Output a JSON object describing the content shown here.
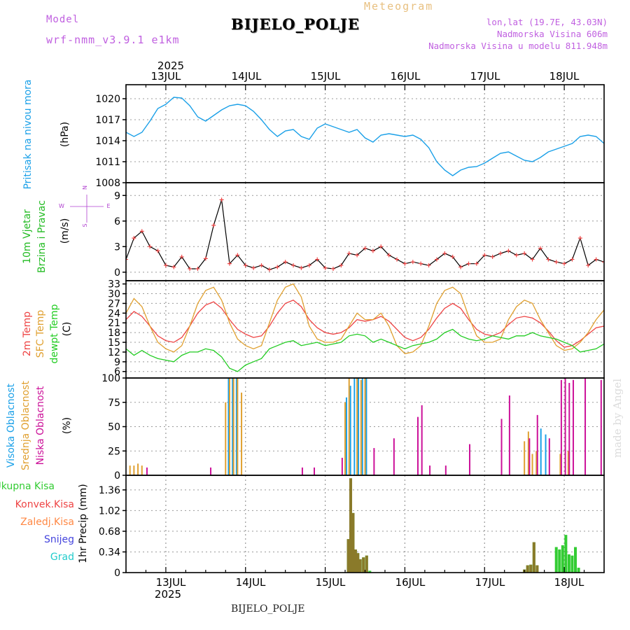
{
  "header": {
    "model_label": "Model",
    "model_name": "wrf-nmm_v3.9.1 e1km",
    "chart_kind": "Meteogram",
    "station": "BIJELO_POLJE",
    "lonlat": "lon,lat (19.7E, 43.03N)",
    "altitude": "Nadmorska Visina 606m",
    "model_altitude": "Nadmorska Visina u modelu 811.948m",
    "credit": "made by Angel",
    "bottom_station": "BIJELO_POLJE"
  },
  "colors": {
    "pressure": "#1aa0e8",
    "wind_label": "#22bb22",
    "temp2m": "#ee4444",
    "sfc_temp": "#e0a030",
    "dewpt": "#22cc22",
    "cloud_high": "#1aa0e8",
    "cloud_mid": "#e0a030",
    "cloud_low": "#cc1199",
    "precip_total": "#33cc33",
    "precip_conv": "#ee4444",
    "precip_frz": "#ff8844",
    "snow": "#4444dd",
    "hail": "#22cccc"
  },
  "time_axis": {
    "year": "2025",
    "days": [
      "13JUL",
      "14JUL",
      "15JUL",
      "16JUL",
      "17JUL",
      "18JUL"
    ]
  },
  "chart_data": [
    {
      "type": "line",
      "panel": "pressure",
      "ylabel_1": "Pritisak na nivou mora",
      "ylabel_2": "(hPa)",
      "ylim": [
        1008,
        1022
      ],
      "yticks": [
        1008,
        1011,
        1014,
        1017,
        1020
      ],
      "x_days": [
        12.5,
        18.5
      ],
      "series": [
        {
          "x": [
            12.5,
            12.6,
            12.7,
            12.8,
            12.9,
            13.0,
            13.1,
            13.2,
            13.3,
            13.4,
            13.5,
            13.6,
            13.7,
            13.8,
            13.9,
            14.0,
            14.1,
            14.2,
            14.3,
            14.4,
            14.5,
            14.6,
            14.7,
            14.8,
            14.9,
            15.0,
            15.1,
            15.2,
            15.3,
            15.4,
            15.5,
            15.6,
            15.7,
            15.8,
            15.9,
            16.0,
            16.1,
            16.2,
            16.3,
            16.4,
            16.5,
            16.6,
            16.7,
            16.8,
            16.9,
            17.0,
            17.1,
            17.2,
            17.3,
            17.4,
            17.5,
            17.6,
            17.7,
            17.8,
            17.9,
            18.0,
            18.1,
            18.2,
            18.3,
            18.4,
            18.5
          ],
          "y": [
            1015.2,
            1014.6,
            1015.2,
            1016.8,
            1018.6,
            1019.2,
            1020.2,
            1020.1,
            1019.0,
            1017.4,
            1016.8,
            1017.6,
            1018.4,
            1019.0,
            1019.2,
            1019.0,
            1018.2,
            1017.0,
            1015.6,
            1014.6,
            1015.4,
            1015.6,
            1014.6,
            1014.2,
            1015.8,
            1016.4,
            1016.0,
            1015.6,
            1015.2,
            1015.6,
            1014.4,
            1013.8,
            1014.8,
            1015.0,
            1014.8,
            1014.6,
            1014.8,
            1014.2,
            1013.0,
            1011.0,
            1009.8,
            1009.0,
            1009.8,
            1010.2,
            1010.3,
            1010.8,
            1011.5,
            1012.2,
            1012.4,
            1011.8,
            1011.2,
            1011.0,
            1011.6,
            1012.4,
            1012.8,
            1013.2,
            1013.6,
            1014.6,
            1014.8,
            1014.6,
            1013.6
          ]
        }
      ]
    },
    {
      "type": "line",
      "panel": "wind",
      "ylabel_1": "10m Vjetar",
      "ylabel_2": "Brzina i Pravac",
      "ylabel_3": "(m/s)",
      "compass": [
        "N",
        "W",
        "E",
        "S"
      ],
      "ylim": [
        -1,
        10.5
      ],
      "yticks": [
        0,
        3,
        6,
        9
      ],
      "series": [
        {
          "x": [
            12.5,
            12.6,
            12.7,
            12.8,
            12.9,
            13.0,
            13.1,
            13.2,
            13.3,
            13.4,
            13.5,
            13.6,
            13.7,
            13.8,
            13.9,
            14.0,
            14.1,
            14.2,
            14.3,
            14.4,
            14.5,
            14.6,
            14.7,
            14.8,
            14.9,
            15.0,
            15.1,
            15.2,
            15.3,
            15.4,
            15.5,
            15.6,
            15.7,
            15.8,
            15.9,
            16.0,
            16.1,
            16.2,
            16.3,
            16.4,
            16.5,
            16.6,
            16.7,
            16.8,
            16.9,
            17.0,
            17.1,
            17.2,
            17.3,
            17.4,
            17.5,
            17.6,
            17.7,
            17.8,
            17.9,
            18.0,
            18.1,
            18.2,
            18.3,
            18.4,
            18.5
          ],
          "y": [
            1.5,
            4.0,
            4.8,
            3.0,
            2.5,
            0.8,
            0.6,
            1.8,
            0.4,
            0.4,
            1.6,
            5.5,
            8.5,
            1.0,
            2.0,
            0.8,
            0.5,
            0.8,
            0.3,
            0.6,
            1.2,
            0.8,
            0.5,
            0.8,
            1.5,
            0.5,
            0.4,
            0.8,
            2.2,
            2.0,
            2.8,
            2.5,
            3.0,
            2.0,
            1.5,
            1.0,
            1.2,
            1.0,
            0.8,
            1.5,
            2.2,
            1.8,
            0.6,
            1.0,
            1.0,
            2.0,
            1.8,
            2.2,
            2.5,
            2.0,
            2.2,
            1.5,
            2.8,
            1.5,
            1.2,
            1.0,
            1.5,
            4.0,
            0.8,
            1.5,
            1.2
          ]
        }
      ]
    },
    {
      "type": "line",
      "panel": "temperature",
      "ylabel_1": "2m Temp",
      "ylabel_2": "SFC Temp",
      "ylabel_3": "dewpt Temp",
      "ylabel_4": "(C)",
      "ylim": [
        4,
        34
      ],
      "yticks": [
        6,
        9,
        12,
        15,
        18,
        21,
        24,
        27,
        30,
        33
      ],
      "series": [
        {
          "name": "2m Temp",
          "x": [
            12.5,
            12.6,
            12.7,
            12.8,
            12.9,
            13.0,
            13.1,
            13.2,
            13.3,
            13.4,
            13.5,
            13.6,
            13.7,
            13.8,
            13.9,
            14.0,
            14.1,
            14.2,
            14.3,
            14.4,
            14.5,
            14.6,
            14.7,
            14.8,
            14.9,
            15.0,
            15.1,
            15.2,
            15.3,
            15.4,
            15.5,
            15.6,
            15.7,
            15.8,
            15.9,
            16.0,
            16.1,
            16.2,
            16.3,
            16.4,
            16.5,
            16.6,
            16.7,
            16.8,
            16.9,
            17.0,
            17.1,
            17.2,
            17.3,
            17.4,
            17.5,
            17.6,
            17.7,
            17.8,
            17.9,
            18.0,
            18.1,
            18.2,
            18.3,
            18.4,
            18.5
          ],
          "y": [
            22,
            24.5,
            23,
            20,
            17,
            15.5,
            15,
            16.5,
            20,
            24,
            26.5,
            27.5,
            25.5,
            22,
            19,
            17.5,
            16.5,
            17,
            20,
            24,
            27,
            28,
            26,
            22,
            19.5,
            18,
            17.5,
            18,
            19.5,
            22,
            21.5,
            22,
            23,
            21.5,
            19,
            16.5,
            15.5,
            16.5,
            19,
            22.5,
            25.5,
            27,
            25.5,
            22,
            19,
            17.5,
            17,
            18,
            20.5,
            22.5,
            23,
            22.5,
            21,
            18.5,
            15.5,
            13.5,
            14,
            15.5,
            17.5,
            19.5,
            20
          ]
        },
        {
          "name": "SFC Temp",
          "x": [
            12.5,
            12.6,
            12.7,
            12.8,
            12.9,
            13.0,
            13.1,
            13.2,
            13.3,
            13.4,
            13.5,
            13.6,
            13.7,
            13.8,
            13.9,
            14.0,
            14.1,
            14.2,
            14.3,
            14.4,
            14.5,
            14.6,
            14.7,
            14.8,
            14.9,
            15.0,
            15.1,
            15.2,
            15.3,
            15.4,
            15.5,
            15.6,
            15.7,
            15.8,
            15.9,
            16.0,
            16.1,
            16.2,
            16.3,
            16.4,
            16.5,
            16.6,
            16.7,
            16.8,
            16.9,
            17.0,
            17.1,
            17.2,
            17.3,
            17.4,
            17.5,
            17.6,
            17.7,
            17.8,
            17.9,
            18.0,
            18.1,
            18.2,
            18.3,
            18.4,
            18.5
          ],
          "y": [
            24,
            28.5,
            26,
            20,
            15,
            13,
            12,
            14,
            20,
            27,
            31,
            32,
            28,
            21,
            16,
            14,
            13,
            14,
            21,
            28,
            32,
            33,
            29,
            20,
            16,
            15,
            15,
            16,
            20,
            24,
            22,
            22,
            24,
            20,
            14,
            11.5,
            12,
            14,
            20,
            27,
            31,
            32,
            30,
            23,
            17,
            15,
            15,
            16,
            22,
            26,
            28,
            27,
            22,
            18,
            14,
            12.5,
            13,
            15,
            18,
            22,
            25
          ]
        },
        {
          "name": "dewpt Temp",
          "x": [
            12.5,
            12.6,
            12.7,
            12.8,
            12.9,
            13.0,
            13.1,
            13.2,
            13.3,
            13.4,
            13.5,
            13.6,
            13.7,
            13.8,
            13.9,
            14.0,
            14.1,
            14.2,
            14.3,
            14.4,
            14.5,
            14.6,
            14.7,
            14.8,
            14.9,
            15.0,
            15.1,
            15.2,
            15.3,
            15.4,
            15.5,
            15.6,
            15.7,
            15.8,
            15.9,
            16.0,
            16.1,
            16.2,
            16.3,
            16.4,
            16.5,
            16.6,
            16.7,
            16.8,
            16.9,
            17.0,
            17.1,
            17.2,
            17.3,
            17.4,
            17.5,
            17.6,
            17.7,
            17.8,
            17.9,
            18.0,
            18.1,
            18.2,
            18.3,
            18.4,
            18.5
          ],
          "y": [
            13,
            11,
            12.5,
            11,
            10,
            9.5,
            9,
            11,
            12,
            12,
            13,
            12.5,
            10.5,
            7,
            6,
            8,
            9,
            10,
            13,
            14,
            15,
            15.5,
            14,
            14.5,
            15,
            14,
            14.5,
            15,
            17,
            17.5,
            17,
            15,
            16,
            15,
            14,
            13,
            14,
            14.5,
            15,
            16,
            18,
            19,
            17,
            16,
            15.5,
            16,
            17,
            16.5,
            16,
            17,
            17,
            18,
            17,
            16.5,
            16,
            15,
            14,
            12,
            12.5,
            13,
            14.5
          ]
        }
      ]
    },
    {
      "type": "bar",
      "panel": "clouds",
      "ylabel_1": "Visoka Oblacnost",
      "ylabel_2": "Srednja Oblacnost",
      "ylabel_3": "Niska Oblacnost",
      "ylabel_4": "(%)",
      "ylim": [
        0,
        100
      ],
      "yticks": [
        0,
        25,
        50,
        75,
        100
      ],
      "series": [
        {
          "name": "Visoka Oblacnost",
          "x": [
            13.8,
            13.85,
            13.9,
            15.28,
            15.33,
            15.38,
            15.43,
            15.48,
            15.53,
            17.72,
            17.78
          ],
          "values": [
            100,
            100,
            100,
            80,
            92,
            100,
            100,
            100,
            100,
            48,
            42
          ]
        },
        {
          "name": "Srednja Oblacnost",
          "x": [
            12.55,
            12.6,
            12.65,
            12.7,
            13.75,
            13.8,
            13.85,
            13.9,
            13.95,
            15.25,
            15.3,
            15.4,
            15.45,
            15.5,
            17.5,
            17.55,
            17.6,
            17.65,
            17.95,
            18.05
          ],
          "values": [
            10,
            10,
            12,
            10,
            75,
            100,
            100,
            100,
            85,
            75,
            100,
            100,
            98,
            100,
            35,
            45,
            22,
            25,
            22,
            25
          ]
        },
        {
          "name": "Niska Oblacnost",
          "x": [
            12.75,
            13.55,
            14.7,
            14.85,
            15.2,
            15.6,
            15.85,
            16.15,
            16.2,
            16.3,
            16.5,
            16.8,
            17.2,
            17.3,
            17.55,
            17.65,
            17.8,
            17.95,
            18.0,
            18.05,
            18.1,
            18.25,
            18.45
          ],
          "values": [
            8,
            8,
            8,
            8,
            18,
            28,
            38,
            60,
            72,
            10,
            10,
            32,
            58,
            82,
            38,
            62,
            38,
            98,
            100,
            95,
            98,
            100,
            98
          ]
        }
      ]
    },
    {
      "type": "bar",
      "panel": "precipitation",
      "ylabel_1": "1hr Precip (mm)",
      "legend": [
        "Ukupna Kisa",
        "Konvek.Kisa",
        "Zaledj.Kisa",
        "Snijeg",
        "Grad"
      ],
      "ylim": [
        0,
        1.6
      ],
      "yticks": [
        0,
        0.34,
        0.68,
        1.02,
        1.36
      ],
      "series": [
        {
          "name": "Ukupna Kisa",
          "x": [
            15.29,
            15.32,
            15.35,
            15.38,
            15.41,
            15.44,
            15.48,
            15.52,
            15.56,
            17.5,
            17.54,
            17.58,
            17.62,
            17.66,
            17.9,
            17.94,
            17.98,
            18.02,
            18.06,
            18.1,
            18.14,
            18.18
          ],
          "values": [
            0.55,
            1.55,
            0.98,
            0.38,
            0.32,
            0.22,
            0.25,
            0.28,
            0.03,
            0.05,
            0.12,
            0.13,
            0.5,
            0.12,
            0.42,
            0.38,
            0.45,
            0.62,
            0.3,
            0.28,
            0.42,
            0.08
          ]
        },
        {
          "name": "Konvek.Kisa",
          "x": [
            15.29,
            15.32,
            15.35,
            15.38,
            15.41,
            15.44,
            15.48,
            15.52,
            17.5,
            17.54,
            17.58,
            17.62,
            17.66
          ],
          "values": [
            0.55,
            1.55,
            0.98,
            0.38,
            0.32,
            0.22,
            0.25,
            0.28,
            0.05,
            0.12,
            0.13,
            0.5,
            0.12
          ]
        }
      ]
    }
  ]
}
